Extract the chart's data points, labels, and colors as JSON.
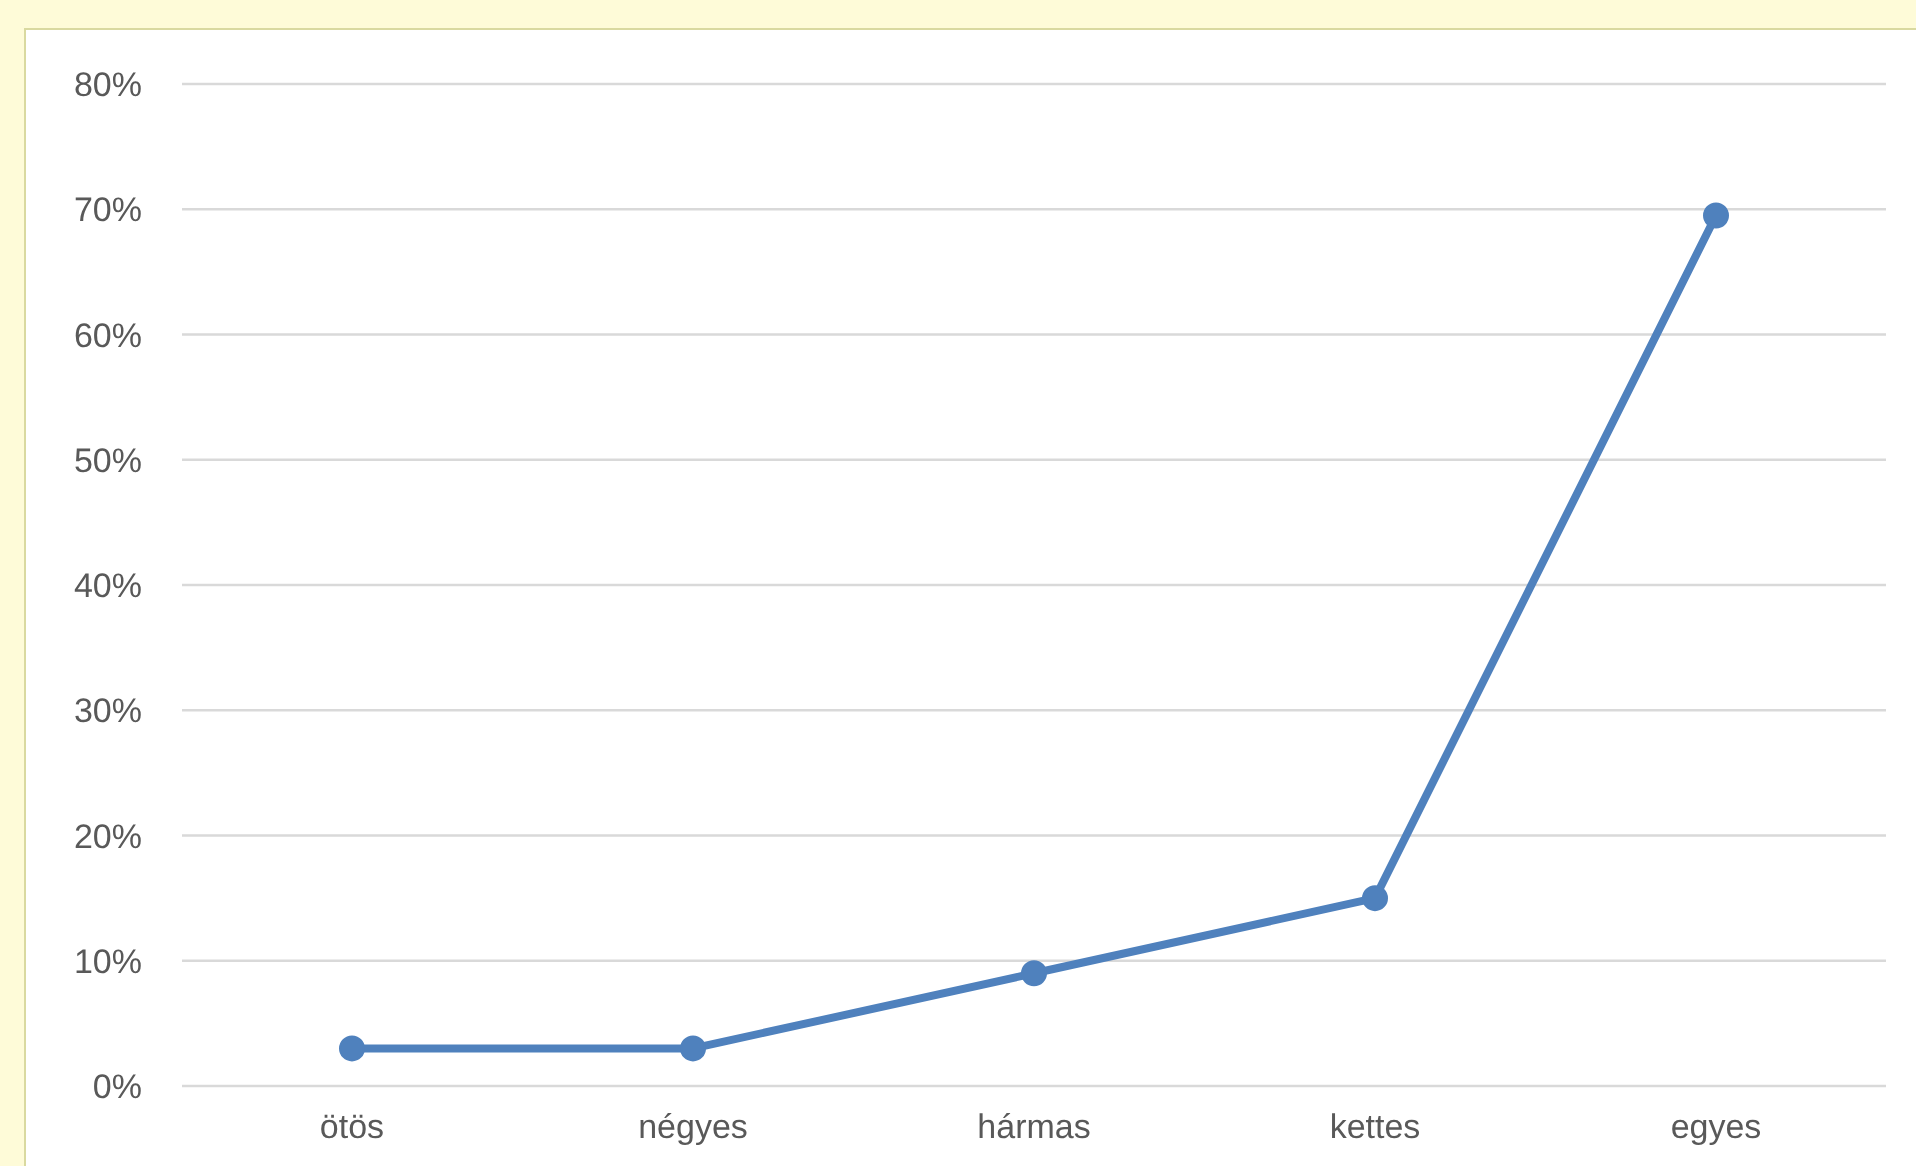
{
  "chart_data": {
    "type": "line",
    "categories": [
      "ötös",
      "négyes",
      "hármas",
      "kettes",
      "egyes"
    ],
    "series": [
      {
        "color": "#4f81bd",
        "values": [
          3,
          3,
          9,
          15,
          69.5
        ]
      }
    ],
    "ylim": [
      0,
      80
    ],
    "yticks": [
      {
        "value": 0,
        "label": "0%"
      },
      {
        "value": 10,
        "label": "10%"
      },
      {
        "value": 20,
        "label": "20%"
      },
      {
        "value": 30,
        "label": "30%"
      },
      {
        "value": 40,
        "label": "40%"
      },
      {
        "value": 50,
        "label": "50%"
      },
      {
        "value": 60,
        "label": "60%"
      },
      {
        "value": 70,
        "label": "70%"
      },
      {
        "value": 80,
        "label": "80%"
      }
    ],
    "grid": "y",
    "marker": "circle",
    "legend": false
  }
}
